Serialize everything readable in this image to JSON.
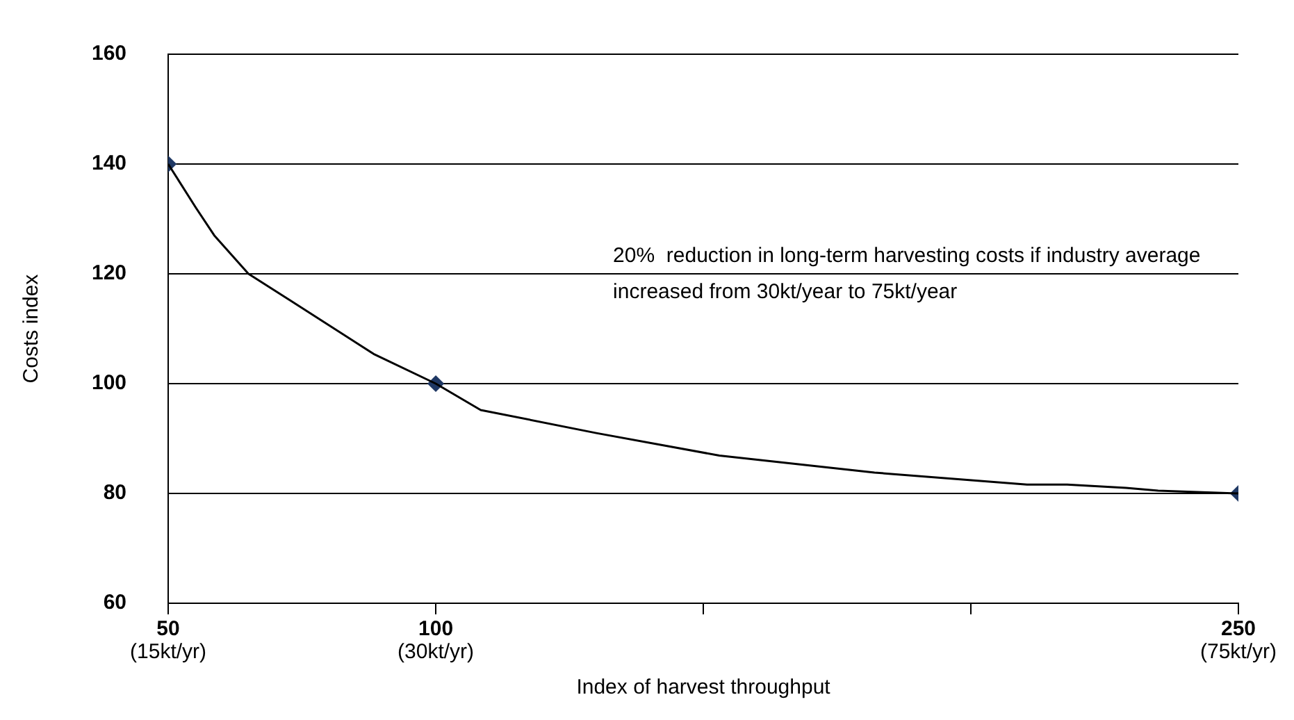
{
  "chart_data": {
    "type": "line",
    "xlabel": "Index of harvest throughput",
    "ylabel": "Costs index",
    "annotations": [
      "20%  reduction in long-term harvesting costs if industry average increased from 30kt/year to 75kt/year",
      "(15kt/yr)",
      "(30kt/yr)",
      "(75kt/yr)"
    ],
    "series": [
      {
        "type": "line",
        "color": "#000000",
        "marker": "none",
        "x": [
          50,
          55.2,
          58.6,
          65,
          72.9,
          88.4,
          100,
          108.4,
          130,
          153,
          182,
          210.5,
          218,
          229,
          235,
          250
        ],
        "values": [
          140,
          132,
          127,
          120,
          115.1,
          105.4,
          100,
          95.2,
          91,
          86.9,
          83.8,
          81.6,
          81.6,
          81,
          80.5,
          80
        ]
      },
      {
        "type": "scatter",
        "color": "#1f3864",
        "marker": "diamond",
        "x": [
          50,
          100,
          250
        ],
        "values": [
          140,
          100,
          80
        ]
      }
    ],
    "xlim": [
      50,
      250
    ],
    "xticks": [
      50,
      100,
      {
        "value": 150,
        "label": null
      },
      {
        "value": 200,
        "label": null
      },
      250
    ],
    "ylim": [
      60,
      160
    ],
    "yticks": [
      60,
      80,
      100,
      120,
      140,
      160
    ],
    "grid": "y",
    "legend": false
  }
}
